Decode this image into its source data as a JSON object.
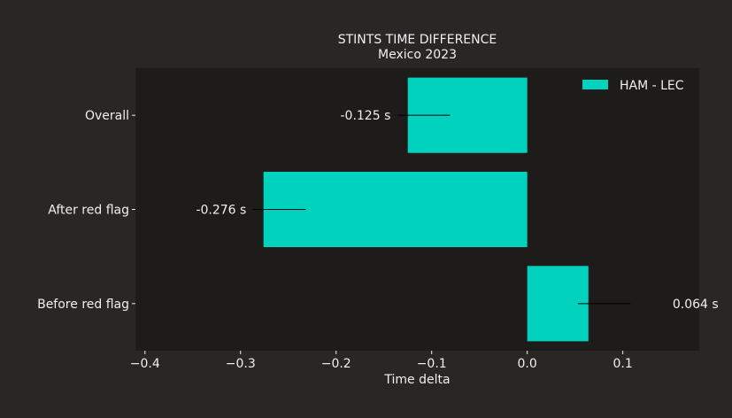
{
  "chart_data": {
    "type": "bar",
    "orientation": "horizontal",
    "title": "STINTS TIME DIFFERENCE",
    "subtitle": "Mexico 2023",
    "xlabel": "Time delta",
    "ylabel": "",
    "xlim": [
      -0.41,
      0.18
    ],
    "xticks": [
      -0.4,
      -0.3,
      -0.2,
      -0.1,
      0.0,
      0.1
    ],
    "xtick_labels": [
      "−0.4",
      "−0.3",
      "−0.2",
      "−0.1",
      "0.0",
      "0.1"
    ],
    "categories": [
      "Overall",
      "After red flag",
      "Before red flag"
    ],
    "series": [
      {
        "name": "HAM - LEC",
        "values": [
          -0.125,
          -0.276,
          0.064
        ]
      }
    ],
    "data_labels": [
      "-0.125 s",
      "-0.276 s",
      "0.064 s"
    ],
    "grid": false,
    "legend_position": "top-right",
    "colors": {
      "bar": "#00d2be",
      "plot_background": "#1e1c1b",
      "figure_background": "#292625",
      "text": "#f0f0f0",
      "label_line": "#000000"
    }
  }
}
